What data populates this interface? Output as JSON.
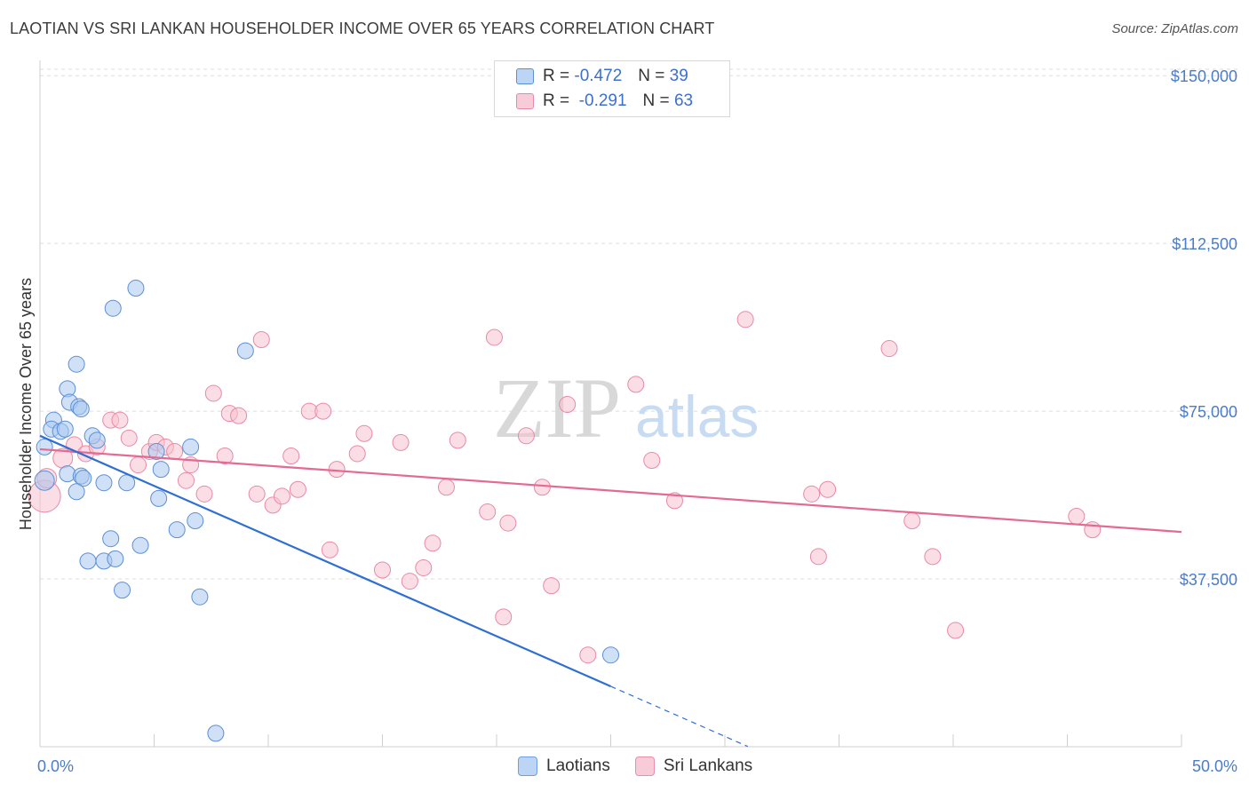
{
  "title": "LAOTIAN VS SRI LANKAN HOUSEHOLDER INCOME OVER 65 YEARS CORRELATION CHART",
  "source": "Source: ZipAtlas.com",
  "watermark": {
    "zip": "ZIP",
    "atlas": "atlas"
  },
  "legend": {
    "r_label": "R =",
    "n_label": "N =",
    "rows": [
      {
        "r": "-0.472",
        "n": "39",
        "color": "#a9c8f0",
        "border": "#5b8fd6"
      },
      {
        "r": "-0.291",
        "n": "63",
        "color": "#f7c1d0",
        "border": "#e88aa5"
      }
    ]
  },
  "bottom_legend": [
    {
      "label": "Laotians",
      "color": "#bcd5f5",
      "border": "#6f9fe0"
    },
    {
      "label": "Sri Lankans",
      "color": "#f8cbd8",
      "border": "#ea8faa"
    }
  ],
  "chart_data": {
    "type": "scatter",
    "title": "LAOTIAN VS SRI LANKAN HOUSEHOLDER INCOME OVER 65 YEARS CORRELATION CHART",
    "xlabel": "",
    "ylabel": "Householder Income Over 65 years",
    "xlim": [
      0,
      50
    ],
    "ylim": [
      0,
      155000
    ],
    "x_tick_labels": [
      "0.0%",
      "50.0%"
    ],
    "y_ticks": [
      37500,
      75000,
      112500,
      150000
    ],
    "y_tick_labels": [
      "$37,500",
      "$75,000",
      "$112,500",
      "$150,000"
    ],
    "grid": true,
    "series": [
      {
        "name": "Laotians",
        "color": "#5b8fd6",
        "fill": "#a9c8f0",
        "trend": {
          "x0": 0,
          "y0": 69500,
          "x1": 25,
          "y1": 13500,
          "dash_to_x": 31
        },
        "points": [
          [
            0.2,
            59500,
            11
          ],
          [
            0.2,
            67000,
            9
          ],
          [
            0.6,
            73000,
            9
          ],
          [
            0.5,
            71000,
            9
          ],
          [
            0.9,
            70500,
            9
          ],
          [
            1.1,
            71000,
            9
          ],
          [
            1.2,
            80000,
            9
          ],
          [
            1.3,
            77000,
            9
          ],
          [
            1.6,
            85500,
            9
          ],
          [
            1.7,
            76000,
            9
          ],
          [
            1.8,
            75500,
            9
          ],
          [
            2.3,
            69500,
            9
          ],
          [
            2.5,
            68500,
            9
          ],
          [
            1.2,
            61000,
            9
          ],
          [
            1.8,
            60500,
            9
          ],
          [
            1.9,
            60000,
            9
          ],
          [
            1.6,
            57000,
            9
          ],
          [
            2.8,
            59000,
            9
          ],
          [
            3.8,
            59000,
            9
          ],
          [
            3.2,
            98000,
            9
          ],
          [
            4.2,
            102500,
            9
          ],
          [
            3.1,
            46500,
            9
          ],
          [
            2.1,
            41500,
            9
          ],
          [
            2.8,
            41500,
            9
          ],
          [
            3.3,
            42000,
            9
          ],
          [
            4.4,
            45000,
            9
          ],
          [
            3.6,
            35000,
            9
          ],
          [
            5.2,
            55500,
            9
          ],
          [
            5.1,
            66000,
            9
          ],
          [
            5.3,
            62000,
            9
          ],
          [
            6.0,
            48500,
            9
          ],
          [
            6.8,
            50500,
            9
          ],
          [
            6.6,
            67000,
            9
          ],
          [
            7.0,
            33500,
            9
          ],
          [
            9.0,
            88500,
            9
          ],
          [
            7.7,
            3000,
            9
          ],
          [
            25.0,
            20500,
            9
          ]
        ]
      },
      {
        "name": "Sri Lankans",
        "color": "#e36a93",
        "fill": "#f7c1d0",
        "trend": {
          "x0": 0,
          "y0": 66500,
          "x1": 50,
          "y1": 48000
        },
        "points": [
          [
            0.2,
            56000,
            18
          ],
          [
            0.3,
            60000,
            11
          ],
          [
            1.0,
            64500,
            11
          ],
          [
            1.5,
            67500,
            9
          ],
          [
            2.0,
            65500,
            9
          ],
          [
            2.5,
            67000,
            9
          ],
          [
            3.1,
            73000,
            9
          ],
          [
            3.5,
            73000,
            9
          ],
          [
            3.9,
            69000,
            9
          ],
          [
            4.3,
            63000,
            9
          ],
          [
            4.8,
            66000,
            9
          ],
          [
            5.1,
            68000,
            9
          ],
          [
            5.5,
            67000,
            9
          ],
          [
            5.9,
            66000,
            9
          ],
          [
            6.4,
            59500,
            9
          ],
          [
            6.6,
            63000,
            9
          ],
          [
            7.2,
            56500,
            9
          ],
          [
            7.6,
            79000,
            9
          ],
          [
            8.1,
            65000,
            9
          ],
          [
            8.3,
            74500,
            9
          ],
          [
            8.7,
            74000,
            9
          ],
          [
            9.5,
            56500,
            9
          ],
          [
            9.7,
            91000,
            9
          ],
          [
            10.2,
            54000,
            9
          ],
          [
            10.6,
            56000,
            9
          ],
          [
            11.0,
            65000,
            9
          ],
          [
            11.3,
            57500,
            9
          ],
          [
            11.8,
            75000,
            9
          ],
          [
            12.4,
            75000,
            9
          ],
          [
            12.7,
            44000,
            9
          ],
          [
            13.0,
            62000,
            9
          ],
          [
            13.9,
            65500,
            9
          ],
          [
            14.2,
            70000,
            9
          ],
          [
            15.0,
            39500,
            9
          ],
          [
            15.8,
            68000,
            9
          ],
          [
            16.2,
            37000,
            9
          ],
          [
            16.8,
            40000,
            9
          ],
          [
            17.2,
            45500,
            9
          ],
          [
            17.8,
            58000,
            9
          ],
          [
            18.3,
            68500,
            9
          ],
          [
            19.6,
            52500,
            9
          ],
          [
            19.9,
            91500,
            9
          ],
          [
            20.3,
            29000,
            9
          ],
          [
            20.5,
            50000,
            9
          ],
          [
            21.3,
            69500,
            9
          ],
          [
            22.0,
            58000,
            9
          ],
          [
            22.4,
            36000,
            9
          ],
          [
            23.1,
            76500,
            9
          ],
          [
            24.0,
            20500,
            9
          ],
          [
            26.1,
            81000,
            9
          ],
          [
            26.8,
            64000,
            9
          ],
          [
            27.8,
            55000,
            9
          ],
          [
            30.9,
            95500,
            9
          ],
          [
            33.8,
            56500,
            9
          ],
          [
            34.1,
            42500,
            9
          ],
          [
            34.5,
            57500,
            9
          ],
          [
            37.2,
            89000,
            9
          ],
          [
            38.2,
            50500,
            9
          ],
          [
            39.1,
            42500,
            9
          ],
          [
            40.1,
            26000,
            9
          ],
          [
            45.4,
            51500,
            9
          ],
          [
            46.1,
            48500,
            9
          ]
        ]
      }
    ]
  }
}
